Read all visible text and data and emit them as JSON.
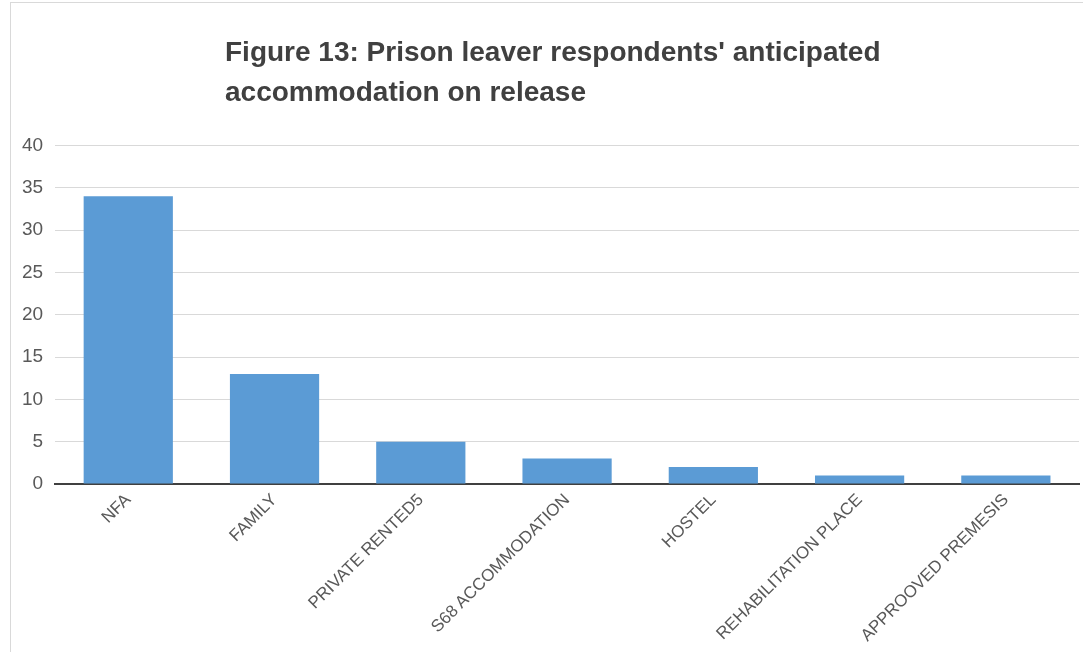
{
  "chart_data": {
    "type": "bar",
    "title": "Figure 13: Prison leaver respondents' anticipated accommodation on release",
    "categories": [
      "NFA",
      "FAMILY",
      "PRIVATE RENTED5",
      "S68 ACCOMMODATION",
      "HOSTEL",
      "REHABILITATION PLACE",
      "APPROOVED PREMESIS"
    ],
    "values": [
      34,
      13,
      5,
      3,
      2,
      1,
      1
    ],
    "color": "#5b9bd5",
    "ylim": [
      0,
      40
    ],
    "yticks": [
      0,
      5,
      10,
      15,
      20,
      25,
      30,
      35,
      40
    ],
    "grid": "y",
    "legend": false
  }
}
